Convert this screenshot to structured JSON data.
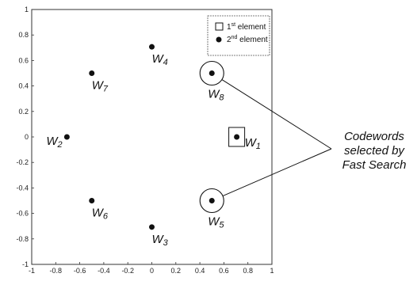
{
  "chart_data": {
    "type": "scatter",
    "xlim": [
      -1,
      1
    ],
    "ylim": [
      -1,
      1
    ],
    "x_ticks": [
      -1,
      -0.8,
      -0.6,
      -0.4,
      -0.2,
      0,
      0.2,
      0.4,
      0.6,
      0.8,
      1
    ],
    "x_tick_labels": [
      "-1",
      "-0.8",
      "-0.6",
      "-0.4",
      "-0.2",
      "0",
      "0.2",
      "0.4",
      "0.6",
      "0.8",
      "1"
    ],
    "y_ticks": [
      1,
      0.8,
      0.6,
      0.4,
      0.2,
      0,
      -0.2,
      -0.4,
      -0.6,
      -0.8,
      -1
    ],
    "y_tick_labels": [
      "1",
      "0.8",
      "0.6",
      "0.4",
      "0.2",
      "0",
      "-0.2",
      "-0.4",
      "-0.6",
      "-0.8",
      "-1"
    ],
    "grid": false,
    "legend_position": "top-right",
    "legend": [
      {
        "marker": "square",
        "base": "1",
        "sup": "st",
        "rest": " element"
      },
      {
        "marker": "dot",
        "base": "2",
        "sup": "nd",
        "rest": " element"
      }
    ],
    "points": [
      {
        "label": "W",
        "sub": "1",
        "x": 0.707,
        "y": 0.0,
        "marker": "square"
      },
      {
        "label": "W",
        "sub": "2",
        "x": -0.707,
        "y": 0.0
      },
      {
        "label": "W",
        "sub": "3",
        "x": 0.0,
        "y": -0.707
      },
      {
        "label": "W",
        "sub": "4",
        "x": 0.0,
        "y": 0.707
      },
      {
        "label": "W",
        "sub": "5",
        "x": 0.5,
        "y": -0.5,
        "marker": "circle"
      },
      {
        "label": "W",
        "sub": "6",
        "x": -0.5,
        "y": -0.5
      },
      {
        "label": "W",
        "sub": "7",
        "x": -0.5,
        "y": 0.5
      },
      {
        "label": "W",
        "sub": "8",
        "x": 0.5,
        "y": 0.5,
        "marker": "circle"
      }
    ],
    "annotation": {
      "lines": [
        "Codewords",
        "selected by",
        "Fast Search"
      ],
      "targets": [
        "W8",
        "W5"
      ]
    }
  }
}
